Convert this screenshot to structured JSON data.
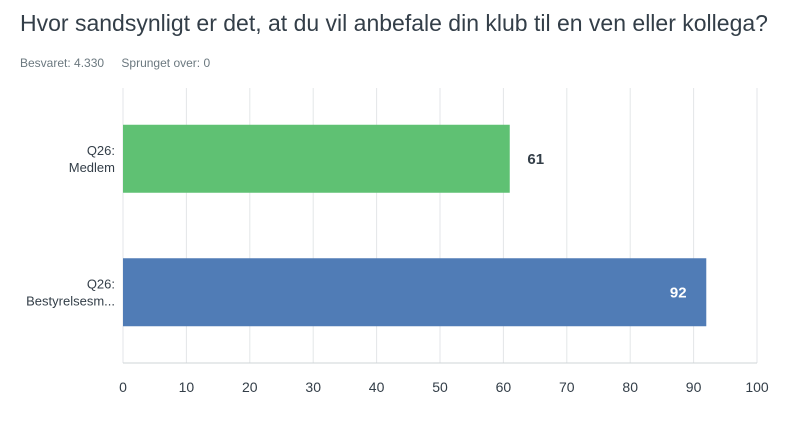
{
  "question": {
    "title": "Hvor sandsynligt er det, at du vil anbefale din klub til en ven eller kollega?",
    "answered": "Besvaret: 4.330",
    "skipped": "Sprunget over: 0"
  },
  "chart_data": {
    "type": "bar",
    "orientation": "horizontal",
    "categories": [
      [
        "Q26:",
        "Medlem"
      ],
      [
        "Q26:",
        "Bestyrelsesm..."
      ]
    ],
    "values": [
      61,
      92
    ],
    "value_labels": [
      "61",
      "92"
    ],
    "bar_colors": [
      "#5fc173",
      "#507cb6"
    ],
    "value_label_colors": [
      "#333e48",
      "#ffffff"
    ],
    "value_label_position": [
      "outside",
      "inside"
    ],
    "x_ticks": [
      "0",
      "10",
      "20",
      "30",
      "40",
      "50",
      "60",
      "70",
      "80",
      "90",
      "100"
    ],
    "xlim": [
      0,
      100
    ],
    "grid": true,
    "title": "",
    "xlabel": "",
    "ylabel": ""
  }
}
